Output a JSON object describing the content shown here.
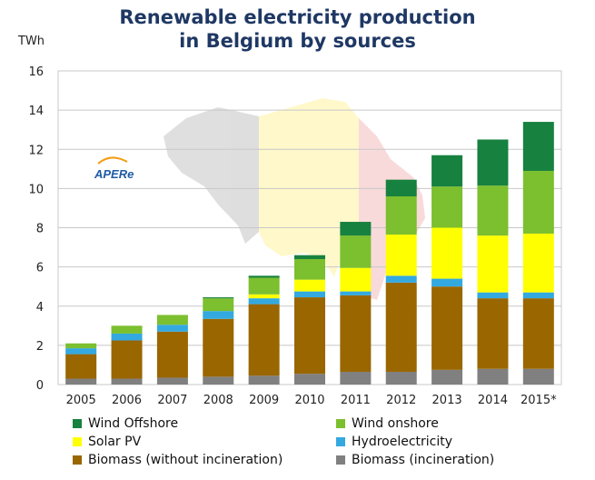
{
  "title_line1": "Renewable electricity production",
  "title_line2": "in Belgium by sources",
  "logo_text": "APERe",
  "chart_data": {
    "type": "bar",
    "stacked": true,
    "ylabel": "TWh",
    "ylim": [
      0,
      16
    ],
    "yticks": [
      0,
      2,
      4,
      6,
      8,
      10,
      12,
      14,
      16
    ],
    "grid": true,
    "legend_position": "bottom",
    "categories": [
      "2005",
      "2006",
      "2007",
      "2008",
      "2009",
      "2010",
      "2011",
      "2012",
      "2013",
      "2014",
      "2015*"
    ],
    "series": [
      {
        "name": "Biomass (incineration)",
        "color": "#808080",
        "values": [
          0.3,
          0.3,
          0.35,
          0.4,
          0.45,
          0.55,
          0.65,
          0.65,
          0.75,
          0.8,
          0.8
        ]
      },
      {
        "name": "Biomass (without incineration)",
        "color": "#996600",
        "values": [
          1.25,
          1.95,
          2.35,
          2.95,
          3.65,
          3.9,
          3.9,
          4.55,
          4.25,
          3.6,
          3.6
        ]
      },
      {
        "name": "Hydroelectricity",
        "color": "#33a9e0",
        "values": [
          0.3,
          0.35,
          0.35,
          0.4,
          0.3,
          0.3,
          0.2,
          0.35,
          0.4,
          0.3,
          0.3
        ]
      },
      {
        "name": "Solar PV",
        "color": "#ffff00",
        "values": [
          0.0,
          0.0,
          0.0,
          0.0,
          0.2,
          0.6,
          1.2,
          2.1,
          2.6,
          2.9,
          3.0
        ]
      },
      {
        "name": "Wind onshore",
        "color": "#7cbf2f",
        "values": [
          0.25,
          0.4,
          0.5,
          0.65,
          0.85,
          1.05,
          1.65,
          1.95,
          2.1,
          2.55,
          3.2
        ]
      },
      {
        "name": "Wind Offshore",
        "color": "#17813f",
        "values": [
          0.0,
          0.0,
          0.0,
          0.05,
          0.1,
          0.2,
          0.7,
          0.85,
          1.6,
          2.35,
          2.5
        ]
      }
    ]
  },
  "legend": [
    {
      "label": "Wind Offshore",
      "color": "#17813f"
    },
    {
      "label": "Wind onshore",
      "color": "#7cbf2f"
    },
    {
      "label": "Solar PV",
      "color": "#ffff00"
    },
    {
      "label": "Hydroelectricity",
      "color": "#33a9e0"
    },
    {
      "label": "Biomass (without incineration)",
      "color": "#996600"
    },
    {
      "label": "Biomass (incineration)",
      "color": "#808080"
    }
  ]
}
